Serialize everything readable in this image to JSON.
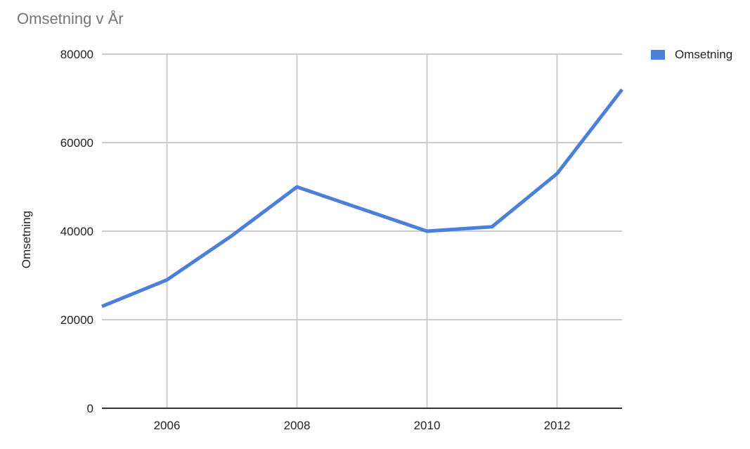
{
  "chart_data": {
    "type": "line",
    "title": "Omsetning v År",
    "xlabel": "",
    "ylabel": "Omsetning",
    "x": [
      2005,
      2006,
      2007,
      2008,
      2009,
      2010,
      2011,
      2012,
      2013
    ],
    "xlim": [
      2005,
      2013
    ],
    "ylim": [
      0,
      80000
    ],
    "x_ticks": [
      "2006",
      "2008",
      "2010",
      "2012"
    ],
    "y_ticks": [
      "0",
      "20000",
      "40000",
      "60000",
      "80000"
    ],
    "grid": true,
    "legend_position": "top-right",
    "series": [
      {
        "name": "Omsetning",
        "color": "#4a7fdb",
        "values": [
          23000,
          29000,
          39000,
          50000,
          45000,
          40000,
          41000,
          53000,
          72000
        ]
      }
    ]
  }
}
